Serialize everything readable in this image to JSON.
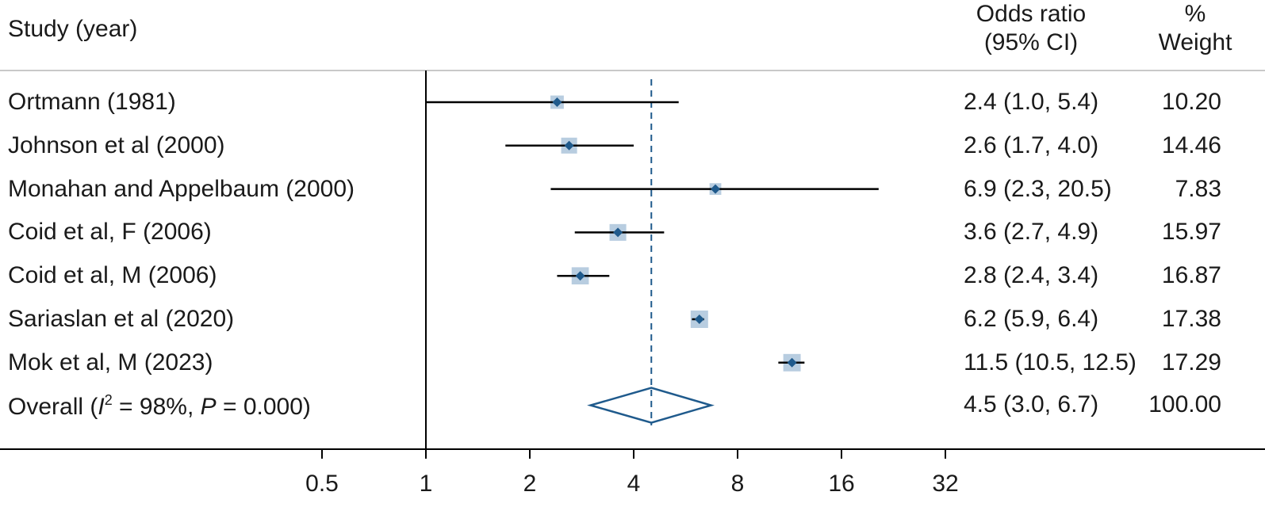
{
  "header": {
    "study_col": "Study (year)",
    "or_col_line1": "Odds ratio",
    "or_col_line2": "(95% CI)",
    "weight_col_line1": "%",
    "weight_col_line2": "Weight"
  },
  "overall_label": {
    "prefix": "Overall (",
    "i_letter": "I",
    "superscript": "2",
    "middle": " = 98%, ",
    "p_letter": "P",
    "suffix": " = 0.000)"
  },
  "colors": {
    "marker": "#1f5a8c",
    "weight_box": "#b8cde0",
    "diamond": "#1f5a8c",
    "ci_line": "#000000",
    "reference_line": "#1f5a8c",
    "rule": "#c8c8c8"
  },
  "chart_data": {
    "type": "forest",
    "x_scale": "log2",
    "x_ticks": [
      0.5,
      1,
      2,
      4,
      8,
      16,
      32
    ],
    "x_tick_labels": [
      "0.5",
      "1",
      "2",
      "4",
      "8",
      "16",
      "32"
    ],
    "null_value": 1,
    "pooled_estimate_reference": 4.5,
    "studies": [
      {
        "label": "Ortmann (1981)",
        "or": 2.4,
        "lo": 1.0,
        "hi": 5.4,
        "ci_text": "2.4 (1.0, 5.4)",
        "weight": 10.2,
        "weight_text": "10.20"
      },
      {
        "label": "Johnson et al (2000)",
        "or": 2.6,
        "lo": 1.7,
        "hi": 4.0,
        "ci_text": "2.6 (1.7, 4.0)",
        "weight": 14.46,
        "weight_text": "14.46"
      },
      {
        "label": "Monahan and  Appelbaum (2000)",
        "or": 6.9,
        "lo": 2.3,
        "hi": 20.5,
        "ci_text": "6.9 (2.3, 20.5)",
        "weight": 7.83,
        "weight_text": "7.83"
      },
      {
        "label": "Coid et al, F (2006)",
        "or": 3.6,
        "lo": 2.7,
        "hi": 4.9,
        "ci_text": "3.6 (2.7, 4.9)",
        "weight": 15.97,
        "weight_text": "15.97"
      },
      {
        "label": "Coid et al, M (2006)",
        "or": 2.8,
        "lo": 2.4,
        "hi": 3.4,
        "ci_text": "2.8 (2.4, 3.4)",
        "weight": 16.87,
        "weight_text": "16.87"
      },
      {
        "label": "Sariaslan et al (2020)",
        "or": 6.2,
        "lo": 5.9,
        "hi": 6.4,
        "ci_text": "6.2 (5.9, 6.4)",
        "weight": 17.38,
        "weight_text": "17.38"
      },
      {
        "label": "Mok et al, M (2023)",
        "or": 11.5,
        "lo": 10.5,
        "hi": 12.5,
        "ci_text": "11.5 (10.5, 12.5)",
        "weight": 17.29,
        "weight_text": "17.29"
      }
    ],
    "overall": {
      "or": 4.5,
      "lo": 3.0,
      "hi": 6.7,
      "ci_text": "4.5 (3.0, 6.7)",
      "weight": 100.0,
      "weight_text": "100.00"
    }
  }
}
